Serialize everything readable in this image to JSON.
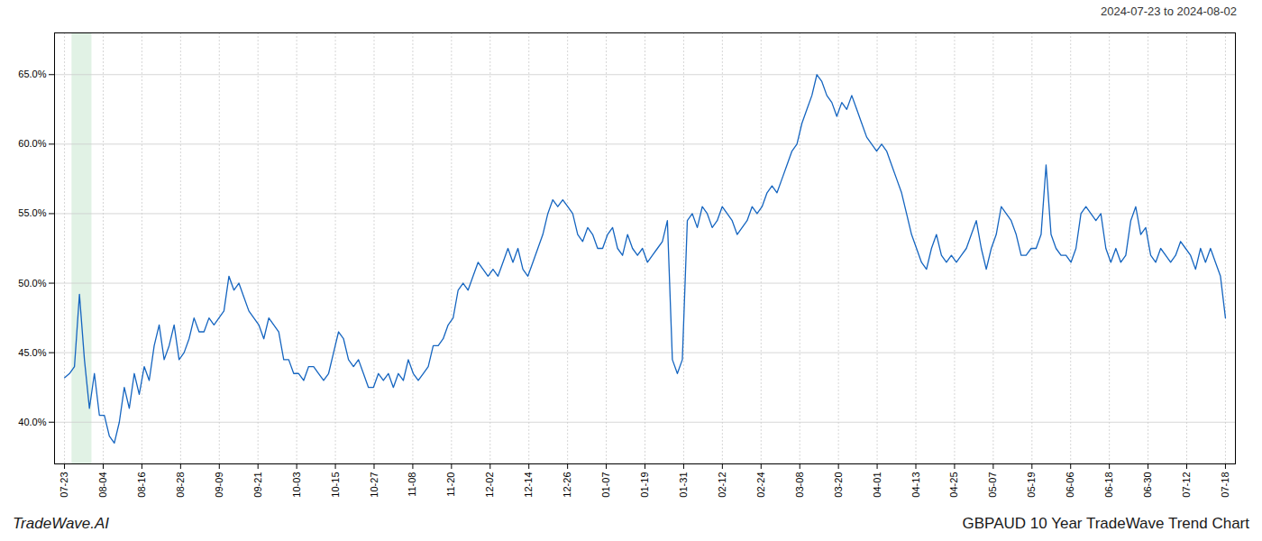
{
  "chart_data": {
    "type": "line",
    "title": "GBPAUD 10 Year TradeWave Trend Chart",
    "subtitle": "2024-07-23 to 2024-08-02",
    "annotations": [
      "TradeWave.AI"
    ],
    "color": "#1565C0",
    "grid": true,
    "x": [
      0,
      1,
      2,
      3,
      4,
      5,
      6,
      7,
      8,
      9,
      10,
      11,
      12,
      13,
      14,
      15,
      16,
      17,
      18,
      19,
      20,
      21,
      22,
      23,
      24,
      25,
      26,
      27,
      28,
      29,
      30,
      31,
      32,
      33,
      34,
      35,
      36,
      37,
      38,
      39,
      40,
      41,
      42,
      43,
      44,
      45,
      46,
      47,
      48,
      49,
      50,
      51,
      52,
      53,
      54,
      55,
      56,
      57,
      58,
      59,
      60,
      61,
      62,
      63,
      64,
      65,
      66,
      67,
      68,
      69,
      70,
      71,
      72,
      73,
      74,
      75,
      76,
      77,
      78,
      79,
      80,
      81,
      82,
      83,
      84,
      85,
      86,
      87,
      88,
      89,
      90,
      91,
      92,
      93,
      94,
      95,
      96,
      97,
      98,
      99,
      100,
      101,
      102,
      103,
      104,
      105,
      106,
      107,
      108,
      109,
      110,
      111,
      112,
      113,
      114,
      115,
      116,
      117,
      118,
      119,
      120,
      121,
      122,
      123,
      124,
      125,
      126,
      127,
      128,
      129,
      130,
      131,
      132,
      133,
      134,
      135,
      136,
      137,
      138,
      139,
      140,
      141,
      142,
      143,
      144,
      145,
      146,
      147,
      148,
      149,
      150,
      151,
      152,
      153,
      154,
      155,
      156,
      157,
      158,
      159,
      160,
      161,
      162,
      163,
      164,
      165,
      166,
      167,
      168,
      169,
      170,
      171,
      172,
      173,
      174,
      175,
      176,
      177,
      178,
      179,
      180,
      181,
      182,
      183,
      184,
      185,
      186,
      187,
      188,
      189,
      190,
      191,
      192,
      193,
      194,
      195,
      196,
      197,
      198,
      199,
      200,
      201,
      202,
      203,
      204,
      205,
      206,
      207,
      208,
      209,
      210,
      211,
      212,
      213,
      214,
      215,
      216,
      217,
      218,
      219,
      220,
      221,
      222,
      223,
      224,
      225,
      226,
      227,
      228,
      229,
      230,
      231,
      232,
      233
    ],
    "values": [
      43.2,
      43.5,
      44.0,
      49.2,
      44.5,
      41.0,
      43.5,
      40.5,
      40.5,
      39.0,
      38.5,
      40.0,
      42.5,
      41.0,
      43.5,
      42.0,
      44.0,
      43.0,
      45.5,
      47.0,
      44.5,
      45.5,
      47.0,
      44.5,
      45.0,
      46.0,
      47.5,
      46.5,
      46.5,
      47.5,
      47.0,
      47.5,
      48.0,
      50.5,
      49.5,
      50.0,
      49.0,
      48.0,
      47.5,
      47.0,
      46.0,
      47.5,
      47.0,
      46.5,
      44.5,
      44.5,
      43.5,
      43.5,
      43.0,
      44.0,
      44.0,
      43.5,
      43.0,
      43.5,
      45.0,
      46.5,
      46.0,
      44.5,
      44.0,
      44.5,
      43.5,
      42.5,
      42.5,
      43.5,
      43.0,
      43.5,
      42.5,
      43.5,
      43.0,
      44.5,
      43.5,
      43.0,
      43.5,
      44.0,
      45.5,
      45.5,
      46.0,
      47.0,
      47.5,
      49.5,
      50.0,
      49.5,
      50.5,
      51.5,
      51.0,
      50.5,
      51.0,
      50.5,
      51.5,
      52.5,
      51.5,
      52.5,
      51.0,
      50.5,
      51.5,
      52.5,
      53.5,
      55.0,
      56.0,
      55.5,
      56.0,
      55.5,
      55.0,
      53.5,
      53.0,
      54.0,
      53.5,
      52.5,
      52.5,
      53.5,
      54.0,
      52.5,
      52.0,
      53.5,
      52.5,
      52.0,
      52.5,
      51.5,
      52.0,
      52.5,
      53.0,
      54.5,
      44.5,
      43.5,
      44.5,
      54.5,
      55.0,
      54.0,
      55.5,
      55.0,
      54.0,
      54.5,
      55.5,
      55.0,
      54.5,
      53.5,
      54.0,
      54.5,
      55.5,
      55.0,
      55.5,
      56.5,
      57.0,
      56.5,
      57.5,
      58.5,
      59.5,
      60.0,
      61.5,
      62.5,
      63.5,
      65.0,
      64.5,
      63.5,
      63.0,
      62.0,
      63.0,
      62.5,
      63.5,
      62.5,
      61.5,
      60.5,
      60.0,
      59.5,
      60.0,
      59.5,
      58.5,
      57.5,
      56.5,
      55.0,
      53.5,
      52.5,
      51.5,
      51.0,
      52.5,
      53.5,
      52.0,
      51.5,
      52.0,
      51.5,
      52.0,
      52.5,
      53.5,
      54.5,
      52.5,
      51.0,
      52.5,
      53.5,
      55.5,
      55.0,
      54.5,
      53.5,
      52.0,
      52.0,
      52.5,
      52.5,
      53.5,
      58.5,
      53.5,
      52.5,
      52.0,
      52.0,
      51.5,
      52.5,
      55.0,
      55.5,
      55.0,
      54.5,
      55.0,
      52.5,
      51.5,
      52.5,
      51.5,
      52.0,
      54.5,
      55.5,
      53.5,
      54.0,
      52.0,
      51.5,
      52.5,
      52.0,
      51.5,
      52.0,
      53.0,
      52.5,
      52.0,
      51.0,
      52.5,
      51.5,
      52.5,
      51.5,
      50.5,
      47.5
    ],
    "xlim": [
      -2,
      235
    ],
    "xticks": [
      {
        "value": 0,
        "label": "07-23"
      },
      {
        "value": 7.7667,
        "label": "08-04"
      },
      {
        "value": 15.5333,
        "label": "08-16"
      },
      {
        "value": 23.3,
        "label": "08-28"
      },
      {
        "value": 31.0667,
        "label": "09-09"
      },
      {
        "value": 38.8333,
        "label": "09-21"
      },
      {
        "value": 46.6,
        "label": "10-03"
      },
      {
        "value": 54.3667,
        "label": "10-15"
      },
      {
        "value": 62.1333,
        "label": "10-27"
      },
      {
        "value": 69.9,
        "label": "11-08"
      },
      {
        "value": 77.6667,
        "label": "11-20"
      },
      {
        "value": 85.4333,
        "label": "12-02"
      },
      {
        "value": 93.2,
        "label": "12-14"
      },
      {
        "value": 100.9667,
        "label": "12-26"
      },
      {
        "value": 108.7333,
        "label": "01-07"
      },
      {
        "value": 116.5,
        "label": "01-19"
      },
      {
        "value": 124.2667,
        "label": "01-31"
      },
      {
        "value": 132.0333,
        "label": "02-12"
      },
      {
        "value": 139.8,
        "label": "02-24"
      },
      {
        "value": 147.5667,
        "label": "03-08"
      },
      {
        "value": 155.3333,
        "label": "03-20"
      },
      {
        "value": 163.1,
        "label": "04-01"
      },
      {
        "value": 170.8667,
        "label": "04-13"
      },
      {
        "value": 178.6333,
        "label": "04-25"
      },
      {
        "value": 186.4,
        "label": "05-07"
      },
      {
        "value": 194.1667,
        "label": "05-19"
      },
      {
        "value": 201.9333,
        "label": "06-06"
      },
      {
        "value": 209.7,
        "label": "06-18"
      },
      {
        "value": 217.4667,
        "label": "06-30"
      },
      {
        "value": 225.2333,
        "label": "07-12"
      },
      {
        "value": 233,
        "label": "07-18"
      }
    ],
    "ylim": [
      37.0,
      68.0
    ],
    "yticks": [
      {
        "value": 40.0,
        "label": "40.0%"
      },
      {
        "value": 45.0,
        "label": "45.0%"
      },
      {
        "value": 50.0,
        "label": "50.0%"
      },
      {
        "value": 55.0,
        "label": "55.0%"
      },
      {
        "value": 60.0,
        "label": "60.0%"
      },
      {
        "value": 65.0,
        "label": "65.0%"
      }
    ],
    "highlight": {
      "x": [
        1.5,
        5.5
      ],
      "color": "#d4edda"
    }
  }
}
